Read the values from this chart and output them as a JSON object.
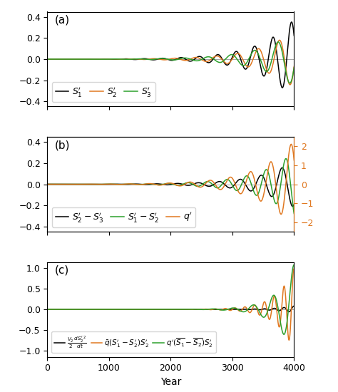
{
  "t_end": 4000,
  "n_points": 10000,
  "colors": {
    "black": "#000000",
    "orange": "#E07820",
    "green": "#2CA02C"
  },
  "panel_a": {
    "label": "(a)",
    "ylim": [
      -0.45,
      0.45
    ],
    "yticks": [
      -0.4,
      -0.2,
      0.0,
      0.2,
      0.4
    ],
    "legend": [
      "$S_1'$",
      "$S_2'$",
      "$S_3'$"
    ],
    "growth_rate": 0.00175,
    "freq_S1": 0.00335,
    "freq_S2": 0.00295,
    "freq_S3": 0.00265,
    "phase_S1": 0.0,
    "phase_S2": 1.0,
    "phase_S3": 2.2,
    "amp": 0.38
  },
  "panel_b": {
    "label": "(b)",
    "ylim": [
      -0.45,
      0.45
    ],
    "yticks": [
      -0.4,
      -0.2,
      0.0,
      0.2,
      0.4
    ],
    "ylim_right": [
      -2.5,
      2.5
    ],
    "yticks_right": [
      -2,
      -1,
      0,
      1,
      2
    ],
    "legend": [
      "$S_2'-S_3'$",
      "$S_1'-S_2'$",
      "$q'$"
    ],
    "growth_rate": 0.00175,
    "freq_diff23": 0.00295,
    "freq_diff12": 0.00315,
    "freq_q": 0.00305,
    "phase_diff23": 0.2,
    "phase_diff12": 0.5,
    "phase_q": 1.3,
    "amp_diff": 0.22,
    "amp_q": 2.3
  },
  "panel_c": {
    "label": "(c)",
    "ylim": [
      -1.15,
      1.15
    ],
    "yticks": [
      -1.0,
      -0.5,
      0.0,
      0.5,
      1.0
    ],
    "legend": [
      "$\\frac{V_2}{2}\\frac{dS_2'^2}{dt}$",
      "$\\bar{q}(S_1'-S_2')S_2'$",
      "$q'(\\overline{S_1}-\\overline{S_2})S_2'$"
    ],
    "growth_rate": 0.00175,
    "freq_orange": 0.0063,
    "freq_green": 0.00305,
    "phase_orange": 0.5,
    "phase_green": 0.5,
    "amp_orange": 1.0,
    "amp_green": 1.1,
    "amp_black": 0.08
  },
  "xlabel": "Year",
  "xticks": [
    0,
    1000,
    2000,
    3000,
    4000
  ]
}
